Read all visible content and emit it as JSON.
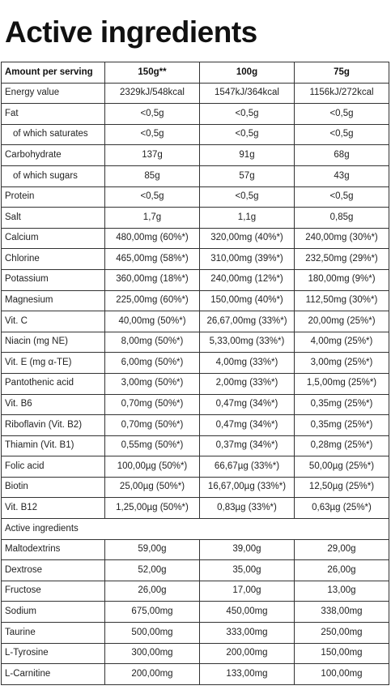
{
  "title": "Active ingredients",
  "header": {
    "label": "Amount per serving",
    "col1": "150g**",
    "col2": "100g",
    "col3": "75g"
  },
  "rows": [
    {
      "label": "Energy value",
      "values": [
        "2329kJ/548kcal",
        "1547kJ/364kcal",
        "1156kJ/272kcal"
      ]
    },
    {
      "label": "Fat",
      "values": [
        "<0,5g",
        "<0,5g",
        "<0,5g"
      ]
    },
    {
      "label": "of which saturates",
      "values": [
        "<0,5g",
        "<0,5g",
        "<0,5g"
      ],
      "sub": true
    },
    {
      "label": "Carbohydrate",
      "values": [
        "137g",
        "91g",
        "68g"
      ]
    },
    {
      "label": "of which sugars",
      "values": [
        "85g",
        "57g",
        "43g"
      ],
      "sub": true
    },
    {
      "label": "Protein",
      "values": [
        "<0,5g",
        "<0,5g",
        "<0,5g"
      ]
    },
    {
      "label": "Salt",
      "values": [
        "1,7g",
        "1,1g",
        "0,85g"
      ]
    },
    {
      "label": "Calcium",
      "values": [
        "480,00mg (60%*)",
        "320,00mg (40%*)",
        "240,00mg (30%*)"
      ]
    },
    {
      "label": "Chlorine",
      "values": [
        "465,00mg (58%*)",
        "310,00mg (39%*)",
        "232,50mg (29%*)"
      ]
    },
    {
      "label": "Potassium",
      "values": [
        "360,00mg (18%*)",
        "240,00mg (12%*)",
        "180,00mg (9%*)"
      ]
    },
    {
      "label": "Magnesium",
      "values": [
        "225,00mg (60%*)",
        "150,00mg (40%*)",
        "112,50mg (30%*)"
      ]
    },
    {
      "label": "Vit. C",
      "values": [
        "40,00mg (50%*)",
        "26,67,00mg (33%*)",
        "20,00mg (25%*)"
      ]
    },
    {
      "label": "Niacin (mg NE)",
      "values": [
        "8,00mg (50%*)",
        "5,33,00mg (33%*)",
        "4,00mg (25%*)"
      ]
    },
    {
      "label": "Vit. E (mg α-TE)",
      "values": [
        "6,00mg (50%*)",
        "4,00mg (33%*)",
        "3,00mg (25%*)"
      ]
    },
    {
      "label": "Pantothenic acid",
      "values": [
        "3,00mg (50%*)",
        "2,00mg (33%*)",
        "1,5,00mg (25%*)"
      ]
    },
    {
      "label": "Vit. B6",
      "values": [
        "0,70mg (50%*)",
        "0,47mg (34%*)",
        "0,35mg (25%*)"
      ]
    },
    {
      "label": "Riboflavin (Vit. B2)",
      "values": [
        "0,70mg (50%*)",
        "0,47mg (34%*)",
        "0,35mg (25%*)"
      ]
    },
    {
      "label": "Thiamin (Vit. B1)",
      "values": [
        "0,55mg (50%*)",
        "0,37mg (34%*)",
        "0,28mg (25%*)"
      ]
    },
    {
      "label": "Folic acid",
      "values": [
        "100,00µg (50%*)",
        "66,67µg (33%*)",
        "50,00µg (25%*)"
      ]
    },
    {
      "label": "Biotin",
      "values": [
        "25,00µg (50%*)",
        "16,67,00µg (33%*)",
        "12,50µg (25%*)"
      ]
    },
    {
      "label": "Vit. B12",
      "values": [
        "1,25,00µg (50%*)",
        "0,83µg (33%*)",
        "0,63µg (25%*)"
      ]
    }
  ],
  "section_label": "Active ingredients",
  "active_rows": [
    {
      "label": "Maltodextrins",
      "values": [
        "59,00g",
        "39,00g",
        "29,00g"
      ]
    },
    {
      "label": "Dextrose",
      "values": [
        "52,00g",
        "35,00g",
        "26,00g"
      ]
    },
    {
      "label": "Fructose",
      "values": [
        "26,00g",
        "17,00g",
        "13,00g"
      ]
    },
    {
      "label": "Sodium",
      "values": [
        "675,00mg",
        "450,00mg",
        "338,00mg"
      ]
    },
    {
      "label": "Taurine",
      "values": [
        "500,00mg",
        "333,00mg",
        "250,00mg"
      ]
    },
    {
      "label": "L-Tyrosine",
      "values": [
        "300,00mg",
        "200,00mg",
        "150,00mg"
      ]
    },
    {
      "label": "L-Carnitine",
      "values": [
        "200,00mg",
        "133,00mg",
        "100,00mg"
      ]
    }
  ]
}
